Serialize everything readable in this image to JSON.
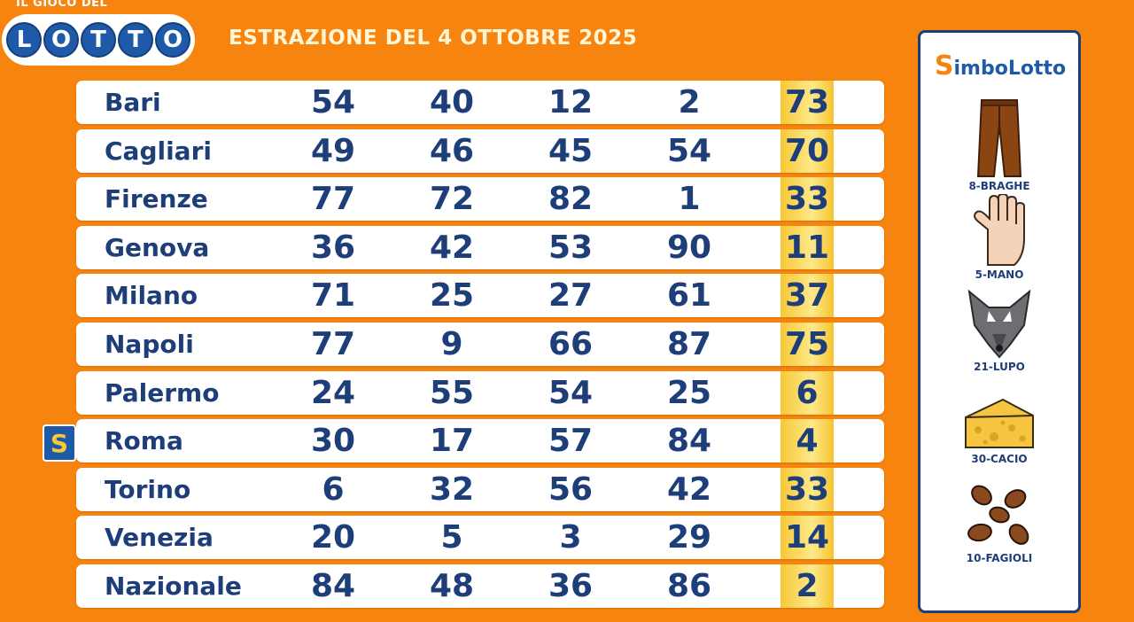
{
  "logo": {
    "top_text": "IL GIOCO DEL",
    "letters": [
      "L",
      "O",
      "T",
      "T",
      "O"
    ]
  },
  "headline": "ESTRAZIONE DEL 4 OTTOBRE 2025",
  "rows": [
    {
      "city": "Bari",
      "nums": [
        "54",
        "40",
        "12",
        "2"
      ],
      "simbolo": "73"
    },
    {
      "city": "Cagliari",
      "nums": [
        "49",
        "46",
        "45",
        "54"
      ],
      "simbolo": "70"
    },
    {
      "city": "Firenze",
      "nums": [
        "77",
        "72",
        "82",
        "1"
      ],
      "simbolo": "33"
    },
    {
      "city": "Genova",
      "nums": [
        "36",
        "42",
        "53",
        "90"
      ],
      "simbolo": "11"
    },
    {
      "city": "Milano",
      "nums": [
        "71",
        "25",
        "27",
        "61"
      ],
      "simbolo": "37"
    },
    {
      "city": "Napoli",
      "nums": [
        "77",
        "9",
        "66",
        "87"
      ],
      "simbolo": "75"
    },
    {
      "city": "Palermo",
      "nums": [
        "24",
        "55",
        "54",
        "25"
      ],
      "simbolo": "6"
    },
    {
      "city": "Roma",
      "nums": [
        "30",
        "17",
        "57",
        "84"
      ],
      "simbolo": "4",
      "marker": "S"
    },
    {
      "city": "Torino",
      "nums": [
        "6",
        "32",
        "56",
        "42"
      ],
      "simbolo": "33"
    },
    {
      "city": "Venezia",
      "nums": [
        "20",
        "5",
        "3",
        "29"
      ],
      "simbolo": "14"
    },
    {
      "city": "Nazionale",
      "nums": [
        "84",
        "48",
        "36",
        "86"
      ],
      "simbolo": "2"
    }
  ],
  "simbolotto": {
    "title_first": "S",
    "title_rest": "imboLotto",
    "symbols": [
      {
        "label": "8-BRAGHE",
        "icon": "trousers-icon"
      },
      {
        "label": "5-MANO",
        "icon": "hand-icon"
      },
      {
        "label": "21-LUPO",
        "icon": "wolf-icon"
      },
      {
        "label": "30-CACIO",
        "icon": "cheese-icon"
      },
      {
        "label": "10-FAGIOLI",
        "icon": "beans-icon"
      }
    ]
  },
  "colors": {
    "background": "#f7840f",
    "text": "#1e3e7a",
    "accent": "#f7c836",
    "brand": "#1e5aa8"
  }
}
